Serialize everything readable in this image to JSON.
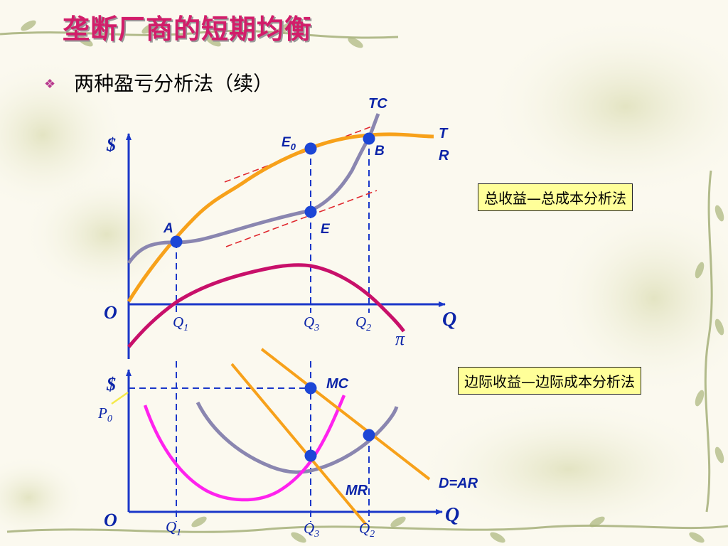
{
  "slide": {
    "title": "垄断厂商的短期均衡",
    "bullet": "两种盈亏分析法（续）"
  },
  "boxes": {
    "total": "总收益—总成本分析法",
    "marginal": "边际收益—边际成本分析法"
  },
  "top_graph": {
    "dollar": "$",
    "origin": "O",
    "axis_q": "Q",
    "tc": "TC",
    "tr_line1": "T",
    "tr_line2": "R",
    "point_e0": "E",
    "point_e0_sub": "0",
    "point_b": "B",
    "point_a": "A",
    "point_e": "E",
    "q1": "Q",
    "q1_sub": "1",
    "q3": "Q",
    "q3_sub": "3",
    "q2": "Q",
    "q2_sub": "2",
    "pi": "π"
  },
  "bottom_graph": {
    "dollar": "$",
    "origin": "O",
    "axis_q": "Q",
    "p0": "P",
    "p0_sub": "0",
    "mc": "MC",
    "mr": "MR",
    "dar": "D=AR",
    "q1": "Q",
    "q1_sub": "1",
    "q3": "Q",
    "q3_sub": "3",
    "q2": "Q",
    "q2_sub": "2"
  },
  "colors": {
    "title": "#d21d6a",
    "axis": "#1a37c9",
    "tr_curve": "#f7a11a",
    "tc_curve": "#8a86b0",
    "profit_curve": "#c8106a",
    "mc_curve": "#ff22ee",
    "dashed_tangent": "#e0282e",
    "point": "#1c46d6",
    "box_fill": "#ffff99"
  }
}
